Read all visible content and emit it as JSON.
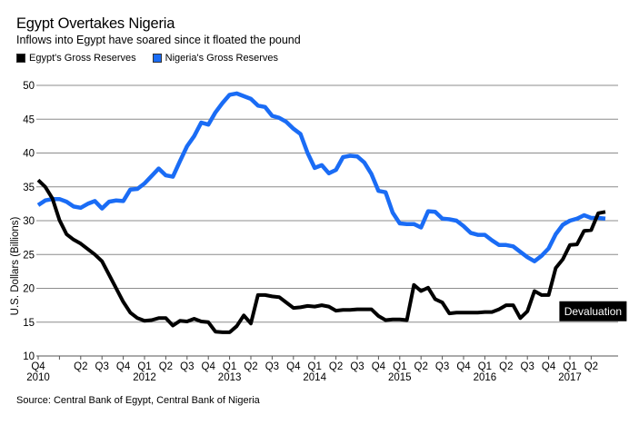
{
  "chart_data": {
    "type": "line",
    "title": "Egypt Overtakes Nigeria",
    "subtitle": "Inflows into Egypt have soared since it floated the pound",
    "ylabel": "U.S. Dollars (Billions)",
    "xlabel": "",
    "ylim": [
      10,
      50
    ],
    "yticks": [
      10,
      15,
      20,
      25,
      30,
      35,
      40,
      45,
      50
    ],
    "grid": true,
    "legend_position": "top-left",
    "x_start": "2010-10",
    "x_frequency": "monthly",
    "x_tick_labels": [
      {
        "q": "Q4",
        "year": "2010",
        "month_index": 0
      },
      {
        "q": "",
        "year": "",
        "month_index": 3
      },
      {
        "q": "Q2",
        "year": "",
        "month_index": 6
      },
      {
        "q": "Q3",
        "year": "",
        "month_index": 9
      },
      {
        "q": "Q4",
        "year": "",
        "month_index": 12
      },
      {
        "q": "Q1",
        "year": "2012",
        "month_index": 15
      },
      {
        "q": "Q2",
        "year": "",
        "month_index": 18
      },
      {
        "q": "Q3",
        "year": "",
        "month_index": 21
      },
      {
        "q": "Q4",
        "year": "",
        "month_index": 24
      },
      {
        "q": "Q1",
        "year": "2013",
        "month_index": 27
      },
      {
        "q": "Q2",
        "year": "",
        "month_index": 30
      },
      {
        "q": "Q3",
        "year": "",
        "month_index": 33
      },
      {
        "q": "Q4",
        "year": "",
        "month_index": 36
      },
      {
        "q": "Q1",
        "year": "2014",
        "month_index": 39
      },
      {
        "q": "Q2",
        "year": "",
        "month_index": 42
      },
      {
        "q": "Q3",
        "year": "",
        "month_index": 45
      },
      {
        "q": "Q4",
        "year": "",
        "month_index": 48
      },
      {
        "q": "Q1",
        "year": "2015",
        "month_index": 51
      },
      {
        "q": "Q2",
        "year": "",
        "month_index": 54
      },
      {
        "q": "Q3",
        "year": "",
        "month_index": 57
      },
      {
        "q": "Q4",
        "year": "",
        "month_index": 60
      },
      {
        "q": "Q1",
        "year": "2016",
        "month_index": 63
      },
      {
        "q": "Q2",
        "year": "",
        "month_index": 66
      },
      {
        "q": "Q3",
        "year": "",
        "month_index": 69
      },
      {
        "q": "Q4",
        "year": "",
        "month_index": 72
      },
      {
        "q": "Q1",
        "year": "2017",
        "month_index": 75
      },
      {
        "q": "Q2",
        "year": "",
        "month_index": 78
      }
    ],
    "series": [
      {
        "name": "Egypt's Gross Reserves",
        "color": "#000000",
        "values": [
          36.0,
          35.0,
          33.3,
          30.1,
          28.0,
          27.2,
          26.6,
          25.8,
          25.0,
          24.0,
          22.0,
          20.0,
          18.0,
          16.4,
          15.6,
          15.2,
          15.3,
          15.6,
          15.6,
          14.5,
          15.2,
          15.1,
          15.5,
          15.1,
          15.0,
          13.6,
          13.5,
          13.5,
          14.4,
          16.0,
          14.8,
          19.0,
          19.0,
          18.8,
          18.7,
          17.9,
          17.1,
          17.2,
          17.4,
          17.3,
          17.5,
          17.3,
          16.7,
          16.8,
          16.8,
          16.9,
          16.9,
          16.9,
          15.9,
          15.3,
          15.4,
          15.4,
          15.3,
          20.5,
          19.6,
          20.1,
          18.4,
          17.9,
          16.3,
          16.4,
          16.4,
          16.4,
          16.4,
          16.5,
          16.5,
          16.9,
          17.5,
          17.5,
          15.6,
          16.6,
          19.6,
          19.0,
          19.0,
          23.0,
          24.3,
          26.4,
          26.5,
          28.5,
          28.6,
          31.1,
          31.3
        ]
      },
      {
        "name": "Nigeria's Gross Reserves",
        "color": "#1a6cf5",
        "values": [
          32.3,
          33.0,
          33.2,
          33.2,
          32.8,
          32.1,
          31.9,
          32.5,
          32.9,
          31.8,
          32.8,
          33.0,
          32.9,
          34.6,
          34.7,
          35.5,
          36.6,
          37.7,
          36.7,
          36.5,
          38.8,
          41.0,
          42.5,
          44.5,
          44.2,
          46.0,
          47.4,
          48.6,
          48.8,
          48.4,
          48.0,
          47.0,
          46.8,
          45.5,
          45.2,
          44.6,
          43.6,
          42.8,
          40.0,
          37.8,
          38.2,
          37.0,
          37.5,
          39.4,
          39.6,
          39.5,
          38.6,
          36.9,
          34.4,
          34.2,
          31.2,
          29.6,
          29.5,
          29.5,
          29.0,
          31.4,
          31.3,
          30.3,
          30.2,
          30.0,
          29.2,
          28.2,
          27.9,
          27.9,
          27.1,
          26.4,
          26.4,
          26.2,
          25.4,
          24.6,
          24.0,
          24.8,
          25.9,
          28.0,
          29.4,
          30.0,
          30.3,
          30.8,
          30.4,
          30.4,
          30.3
        ]
      }
    ],
    "annotations": [
      {
        "text": "Devaluation",
        "series": "Egypt's Gross Reserves",
        "month_index": 73
      }
    ],
    "source": "Source: Central Bank of Egypt, Central Bank of Nigeria"
  }
}
